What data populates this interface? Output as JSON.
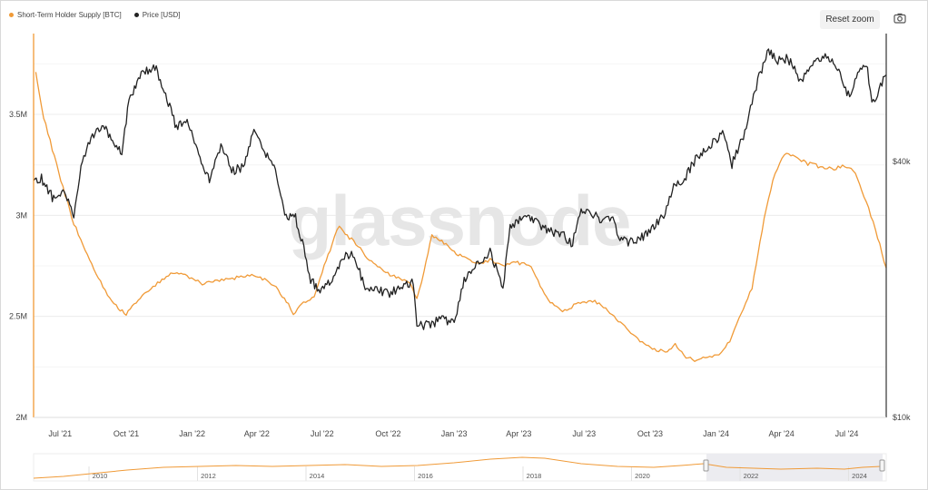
{
  "legend": {
    "sth_supply": "Short-Term Holder Supply [BTC]",
    "price": "Price [USD]"
  },
  "toolbar": {
    "reset_zoom": "Reset zoom",
    "camera_icon": "camera-icon"
  },
  "watermark": "glassnode",
  "colors": {
    "supply": "#f09a37",
    "price": "#222222",
    "grid": "#ececec"
  },
  "navigator": {
    "years": [
      "2010",
      "2012",
      "2014",
      "2016",
      "2018",
      "2020",
      "2022",
      "2024"
    ]
  },
  "chart_data": {
    "type": "line",
    "x_ticks": [
      "Jul '21",
      "Oct '21",
      "Jan '22",
      "Apr '22",
      "Jul '22",
      "Oct '22",
      "Jan '23",
      "Apr '23",
      "Jul '23",
      "Oct '23",
      "Jan '24",
      "Apr '24",
      "Jul '24"
    ],
    "y_left_ticks": [
      "2M",
      "2.5M",
      "3M",
      "3.5M"
    ],
    "y_right_ticks": [
      "$10k",
      "$40k"
    ],
    "x_range": [
      "2021-05-25",
      "2024-08-25"
    ],
    "y_left_range": [
      2000000,
      3900000
    ],
    "y_right_range": [
      10000,
      80000
    ],
    "y_right_scale": "log",
    "grid": true,
    "series": [
      {
        "name": "Short-Term Holder Supply [BTC]",
        "axis": "left",
        "color": "#f09a37",
        "points": [
          [
            "2021-05-28",
            3700000
          ],
          [
            "2021-06-05",
            3530000
          ],
          [
            "2021-06-20",
            3330000
          ],
          [
            "2021-07-05",
            3140000
          ],
          [
            "2021-07-20",
            2960000
          ],
          [
            "2021-08-05",
            2830000
          ],
          [
            "2021-08-20",
            2710000
          ],
          [
            "2021-09-05",
            2610000
          ],
          [
            "2021-09-20",
            2540000
          ],
          [
            "2021-10-01",
            2510000
          ],
          [
            "2021-10-15",
            2570000
          ],
          [
            "2021-11-01",
            2630000
          ],
          [
            "2021-11-20",
            2680000
          ],
          [
            "2021-12-05",
            2720000
          ],
          [
            "2021-12-25",
            2700000
          ],
          [
            "2022-01-15",
            2660000
          ],
          [
            "2022-02-05",
            2680000
          ],
          [
            "2022-03-01",
            2690000
          ],
          [
            "2022-03-25",
            2700000
          ],
          [
            "2022-04-15",
            2680000
          ],
          [
            "2022-05-01",
            2630000
          ],
          [
            "2022-05-15",
            2560000
          ],
          [
            "2022-05-22",
            2510000
          ],
          [
            "2022-06-05",
            2570000
          ],
          [
            "2022-06-20",
            2600000
          ],
          [
            "2022-07-01",
            2720000
          ],
          [
            "2022-07-15",
            2860000
          ],
          [
            "2022-07-25",
            2950000
          ],
          [
            "2022-08-05",
            2900000
          ],
          [
            "2022-08-20",
            2850000
          ],
          [
            "2022-09-05",
            2780000
          ],
          [
            "2022-09-25",
            2720000
          ],
          [
            "2022-10-15",
            2690000
          ],
          [
            "2022-11-01",
            2660000
          ],
          [
            "2022-11-10",
            2590000
          ],
          [
            "2022-11-20",
            2720000
          ],
          [
            "2022-12-01",
            2900000
          ],
          [
            "2022-12-15",
            2870000
          ],
          [
            "2023-01-01",
            2820000
          ],
          [
            "2023-01-15",
            2790000
          ],
          [
            "2023-02-01",
            2760000
          ],
          [
            "2023-02-20",
            2780000
          ],
          [
            "2023-03-10",
            2750000
          ],
          [
            "2023-03-25",
            2770000
          ],
          [
            "2023-04-05",
            2760000
          ],
          [
            "2023-04-15",
            2760000
          ],
          [
            "2023-05-01",
            2650000
          ],
          [
            "2023-05-15",
            2570000
          ],
          [
            "2023-06-01",
            2520000
          ],
          [
            "2023-06-20",
            2560000
          ],
          [
            "2023-07-10",
            2580000
          ],
          [
            "2023-07-25",
            2560000
          ],
          [
            "2023-08-15",
            2490000
          ],
          [
            "2023-09-01",
            2430000
          ],
          [
            "2023-09-20",
            2370000
          ],
          [
            "2023-10-10",
            2330000
          ],
          [
            "2023-10-25",
            2330000
          ],
          [
            "2023-11-05",
            2360000
          ],
          [
            "2023-11-20",
            2300000
          ],
          [
            "2023-12-05",
            2280000
          ],
          [
            "2023-12-20",
            2300000
          ],
          [
            "2024-01-05",
            2310000
          ],
          [
            "2024-01-20",
            2380000
          ],
          [
            "2024-02-05",
            2520000
          ],
          [
            "2024-02-20",
            2640000
          ],
          [
            "2024-03-05",
            2930000
          ],
          [
            "2024-03-20",
            3180000
          ],
          [
            "2024-04-05",
            3300000
          ],
          [
            "2024-04-20",
            3290000
          ],
          [
            "2024-05-05",
            3260000
          ],
          [
            "2024-05-25",
            3240000
          ],
          [
            "2024-06-10",
            3230000
          ],
          [
            "2024-06-25",
            3240000
          ],
          [
            "2024-07-10",
            3230000
          ],
          [
            "2024-07-25",
            3100000
          ],
          [
            "2024-08-10",
            2930000
          ],
          [
            "2024-08-25",
            2740000
          ]
        ]
      },
      {
        "name": "Price [USD]",
        "axis": "right",
        "color": "#222222",
        "points": [
          [
            "2021-05-25",
            36000
          ],
          [
            "2021-06-05",
            36500
          ],
          [
            "2021-06-20",
            33000
          ],
          [
            "2021-07-05",
            34000
          ],
          [
            "2021-07-20",
            30000
          ],
          [
            "2021-08-01",
            40000
          ],
          [
            "2021-08-15",
            46000
          ],
          [
            "2021-09-01",
            48000
          ],
          [
            "2021-09-10",
            45000
          ],
          [
            "2021-09-25",
            42000
          ],
          [
            "2021-10-05",
            55000
          ],
          [
            "2021-10-20",
            64000
          ],
          [
            "2021-11-10",
            67000
          ],
          [
            "2021-11-25",
            57000
          ],
          [
            "2021-12-10",
            48000
          ],
          [
            "2021-12-25",
            50000
          ],
          [
            "2022-01-10",
            42000
          ],
          [
            "2022-01-25",
            36000
          ],
          [
            "2022-02-10",
            44000
          ],
          [
            "2022-02-25",
            38000
          ],
          [
            "2022-03-15",
            39000
          ],
          [
            "2022-03-28",
            47000
          ],
          [
            "2022-04-10",
            42000
          ],
          [
            "2022-04-25",
            39000
          ],
          [
            "2022-05-10",
            30000
          ],
          [
            "2022-05-25",
            29500
          ],
          [
            "2022-06-15",
            21000
          ],
          [
            "2022-06-30",
            19800
          ],
          [
            "2022-07-15",
            21000
          ],
          [
            "2022-07-30",
            24000
          ],
          [
            "2022-08-15",
            24000
          ],
          [
            "2022-08-30",
            20000
          ],
          [
            "2022-09-15",
            20000
          ],
          [
            "2022-10-01",
            19500
          ],
          [
            "2022-10-25",
            20500
          ],
          [
            "2022-11-05",
            21000
          ],
          [
            "2022-11-10",
            16500
          ],
          [
            "2022-11-25",
            16500
          ],
          [
            "2022-12-15",
            17000
          ],
          [
            "2023-01-01",
            16600
          ],
          [
            "2023-01-15",
            21000
          ],
          [
            "2023-02-01",
            23000
          ],
          [
            "2023-02-20",
            24500
          ],
          [
            "2023-03-10",
            20000
          ],
          [
            "2023-03-20",
            28000
          ],
          [
            "2023-04-10",
            30000
          ],
          [
            "2023-04-25",
            29000
          ],
          [
            "2023-05-10",
            27500
          ],
          [
            "2023-06-01",
            27000
          ],
          [
            "2023-06-15",
            25500
          ],
          [
            "2023-06-25",
            30500
          ],
          [
            "2023-07-10",
            30400
          ],
          [
            "2023-07-25",
            29300
          ],
          [
            "2023-08-10",
            29500
          ],
          [
            "2023-08-20",
            26000
          ],
          [
            "2023-09-10",
            25800
          ],
          [
            "2023-10-01",
            27500
          ],
          [
            "2023-10-20",
            30000
          ],
          [
            "2023-11-01",
            34500
          ],
          [
            "2023-11-20",
            37000
          ],
          [
            "2023-12-05",
            41000
          ],
          [
            "2023-12-20",
            43000
          ],
          [
            "2024-01-10",
            46500
          ],
          [
            "2024-01-23",
            39500
          ],
          [
            "2024-02-10",
            47000
          ],
          [
            "2024-02-28",
            62000
          ],
          [
            "2024-03-14",
            73000
          ],
          [
            "2024-03-25",
            69000
          ],
          [
            "2024-04-10",
            70000
          ],
          [
            "2024-04-25",
            63000
          ],
          [
            "2024-05-05",
            63500
          ],
          [
            "2024-05-20",
            70000
          ],
          [
            "2024-06-05",
            71000
          ],
          [
            "2024-06-20",
            64500
          ],
          [
            "2024-07-05",
            56500
          ],
          [
            "2024-07-20",
            67000
          ],
          [
            "2024-07-30",
            66000
          ],
          [
            "2024-08-05",
            54000
          ],
          [
            "2024-08-15",
            59000
          ],
          [
            "2024-08-25",
            64000
          ]
        ]
      }
    ]
  }
}
